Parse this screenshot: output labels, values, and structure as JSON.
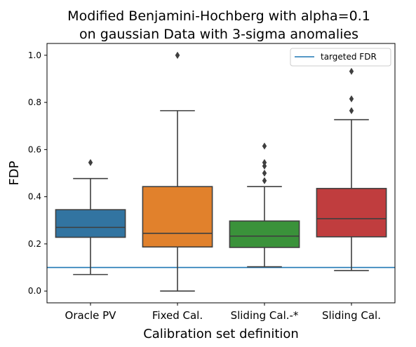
{
  "chart_data": {
    "type": "box",
    "title_lines": [
      "Modified Benjamini-Hochberg with alpha=0.1",
      "on gaussian Data with 3-sigma anomalies"
    ],
    "xlabel": "Calibration set definition",
    "ylabel": "FDP",
    "ylim": [
      -0.05,
      1.05
    ],
    "yticks": [
      0.0,
      0.2,
      0.4,
      0.6,
      0.8,
      1.0
    ],
    "ytick_labels": [
      "0.0",
      "0.2",
      "0.4",
      "0.6",
      "0.8",
      "1.0"
    ],
    "grid": false,
    "legend": {
      "placement": "top-right",
      "entries": [
        {
          "label": "targeted FDR",
          "color": "#1f77b4"
        }
      ]
    },
    "reference_line": {
      "label": "targeted FDR",
      "value": 0.1,
      "color": "#1f77b4"
    },
    "categories": [
      "Oracle PV",
      "Fixed Cal.",
      "Sliding Cal.-*",
      "Sliding Cal."
    ],
    "boxes": [
      {
        "category": "Oracle PV",
        "color": "#3274a1",
        "whisker_low": 0.07,
        "q1": 0.228,
        "median": 0.27,
        "q3": 0.345,
        "whisker_high": 0.477,
        "outliers": [
          0.545
        ]
      },
      {
        "category": "Fixed Cal.",
        "color": "#e1812c",
        "whisker_low": 0.0,
        "q1": 0.187,
        "median": 0.245,
        "q3": 0.443,
        "whisker_high": 0.765,
        "outliers": [
          1.0,
          1.0
        ]
      },
      {
        "category": "Sliding Cal.-*",
        "color": "#3a923a",
        "whisker_low": 0.103,
        "q1": 0.185,
        "median": 0.233,
        "q3": 0.297,
        "whisker_high": 0.443,
        "outliers": [
          0.468,
          0.5,
          0.53,
          0.545,
          0.615
        ]
      },
      {
        "category": "Sliding Cal.",
        "color": "#c03d3e",
        "whisker_low": 0.087,
        "q1": 0.23,
        "median": 0.307,
        "q3": 0.435,
        "whisker_high": 0.727,
        "outliers": [
          0.765,
          0.815,
          0.932
        ]
      }
    ]
  }
}
